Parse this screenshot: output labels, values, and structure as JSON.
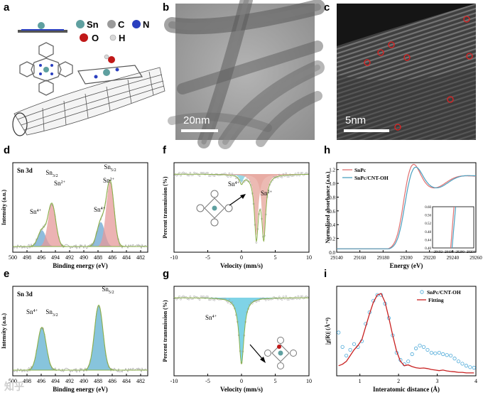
{
  "panels": {
    "a": {
      "label": "a",
      "legend": [
        {
          "symbol": "Sn",
          "color": "#5fa0a0"
        },
        {
          "symbol": "C",
          "color": "#9a9a9a"
        },
        {
          "symbol": "N",
          "color": "#2a3fbf"
        },
        {
          "symbol": "O",
          "color": "#c01818"
        },
        {
          "symbol": "H",
          "color": "#d8d8d8"
        }
      ]
    },
    "b": {
      "label": "b",
      "scale_bar": "20nm"
    },
    "c": {
      "label": "c",
      "scale_bar": "5nm"
    },
    "d": {
      "label": "d"
    },
    "e": {
      "label": "e"
    },
    "f": {
      "label": "f"
    },
    "g": {
      "label": "g"
    },
    "h": {
      "label": "h"
    },
    "i": {
      "label": "i"
    }
  },
  "watermark": "知乎",
  "chart_data": [
    {
      "panel": "d",
      "type": "line",
      "title": "Sn 3d",
      "xlabel": "Binding energy (eV)",
      "ylabel": "Intensity (a.u.)",
      "xlim": [
        500,
        481
      ],
      "x_reversed": true,
      "xticks": [
        500,
        498,
        496,
        494,
        492,
        490,
        488,
        486,
        484,
        482
      ],
      "annotations": [
        {
          "text": "Sn3/2",
          "main": "Sn",
          "sub": "3/2",
          "x": 494.8
        },
        {
          "text": "Sn2+",
          "main": "Sn",
          "sup": "2+",
          "x": 493.5
        },
        {
          "text": "Sn4+",
          "main": "Sn",
          "sup": "4+",
          "x": 496.8
        },
        {
          "text": "Sn5/2",
          "main": "Sn",
          "sub": "5/2",
          "x": 486.8
        },
        {
          "text": "Sn2+",
          "main": "Sn",
          "sup": "2+",
          "x": 487.3
        },
        {
          "text": "Sn4+",
          "main": "Sn",
          "sup": "4+",
          "x": 488.8
        }
      ],
      "series": [
        {
          "name": "Sn4+ 3d3/2",
          "center": 495.9,
          "height": 0.22,
          "color": "#6aa6d0"
        },
        {
          "name": "Sn2+ 3d3/2",
          "center": 494.5,
          "height": 0.58,
          "color": "#e59a9a"
        },
        {
          "name": "Sn4+ 3d5/2",
          "center": 487.6,
          "height": 0.33,
          "color": "#6aa6d0"
        },
        {
          "name": "Sn2+ 3d5/2",
          "center": 486.3,
          "height": 0.88,
          "color": "#e59a9a"
        }
      ]
    },
    {
      "panel": "e",
      "type": "line",
      "title": "Sn 3d",
      "xlabel": "Binding energy (eV)",
      "ylabel": "Intensity (a.u.)",
      "xlim": [
        500,
        481
      ],
      "x_reversed": true,
      "xticks": [
        500,
        498,
        496,
        494,
        492,
        490,
        488,
        486,
        484,
        482
      ],
      "annotations": [
        {
          "text": "Sn4+",
          "main": "Sn",
          "sup": "4+",
          "x": 497.2
        },
        {
          "text": "Sn3/2",
          "main": "Sn",
          "sub": "3/2",
          "x": 494.8
        },
        {
          "text": "Sn5/2",
          "main": "Sn",
          "sub": "5/2",
          "x": 487.7
        }
      ],
      "series": [
        {
          "name": "Sn4+ 3d3/2",
          "center": 495.9,
          "height": 0.58,
          "color": "#5fb0d0"
        },
        {
          "name": "Sn4+ 3d5/2",
          "center": 487.9,
          "height": 0.88,
          "color": "#5fb0d0"
        }
      ]
    },
    {
      "panel": "f",
      "type": "line",
      "xlabel": "Velocity (mm/s)",
      "ylabel": "Percent transmission (%)",
      "xlim": [
        -10,
        10
      ],
      "xticks": [
        -10,
        -5,
        0,
        5,
        10
      ],
      "annotations": [
        {
          "text": "Sn4+",
          "main": "Sn",
          "sup": "4+",
          "x": -1.5
        },
        {
          "text": "Sn2+",
          "main": "Sn",
          "sup": "2+",
          "x": 4.6
        }
      ],
      "series": [
        {
          "name": "Sn4+",
          "center": 0.0,
          "depth": 0.12,
          "color": "#7fd0e0"
        },
        {
          "name": "Sn2+ doublet A",
          "center": 2.2,
          "depth": 0.88,
          "color": "#e7a9a0"
        },
        {
          "name": "Sn2+ doublet B",
          "center": 3.3,
          "depth": 0.88,
          "color": "#e7a9a0"
        }
      ]
    },
    {
      "panel": "g",
      "type": "line",
      "xlabel": "Velocity (mm/s)",
      "ylabel": "Percent transmission (%)",
      "xlim": [
        -10,
        10
      ],
      "xticks": [
        -10,
        -5,
        0,
        5,
        10
      ],
      "annotations": [
        {
          "text": "Sn4+",
          "main": "Sn",
          "sup": "4+",
          "x": -2.4
        }
      ],
      "series": [
        {
          "name": "Sn4+",
          "center": 0.0,
          "depth": 0.95,
          "color": "#5fc8e0"
        }
      ]
    },
    {
      "panel": "h",
      "type": "line",
      "xlabel": "Energy (eV)",
      "ylabel": "Normalized absorbance (a.u.)",
      "xlim": [
        29140,
        29260
      ],
      "ylim": [
        0.0,
        1.3
      ],
      "xticks": [
        29140,
        29160,
        29180,
        29200,
        29220,
        29240,
        29260
      ],
      "yticks": [
        0.0,
        0.2,
        0.4,
        0.6,
        0.8,
        1.0,
        1.2
      ],
      "legend": [
        "SnPc",
        "SnPc/CNT-OH"
      ],
      "series": [
        {
          "name": "SnPc",
          "color": "#e07070",
          "edge": 29197,
          "peak_x": 29205,
          "peak_y": 1.23
        },
        {
          "name": "SnPc/CNT-OH",
          "color": "#4aa0c0",
          "edge": 29198,
          "peak_x": 29207,
          "peak_y": 1.19
        }
      ],
      "inset": {
        "xlim": [
          29190,
          29205
        ],
        "xticks": [
          29192,
          29196,
          29200,
          29204
        ],
        "ylim": [
          0.4,
          0.6
        ],
        "yticks": [
          0.4,
          0.44,
          0.48,
          0.52,
          0.56,
          0.6
        ],
        "series": [
          {
            "name": "SnPc",
            "x": [
              29196.6,
              29197.8
            ],
            "y": [
              0.4,
              0.6
            ]
          },
          {
            "name": "SnPc/CNT-OH",
            "x": [
              29197.1,
              29198.4
            ],
            "y": [
              0.4,
              0.6
            ]
          }
        ]
      }
    },
    {
      "panel": "i",
      "type": "line",
      "xlabel": "Interatomic distance (Å)",
      "ylabel": "|χ(R)| (Å⁻⁴)",
      "xlim": [
        0.4,
        4.0
      ],
      "ylim": [
        0.0,
        3.1
      ],
      "xticks": [
        1,
        2,
        3,
        4
      ],
      "legend": [
        "SnPc/CNT-OH",
        "Fitting"
      ],
      "series": [
        {
          "name": "SnPc/CNT-OH",
          "style": "circles",
          "color": "#4aa8d8",
          "x": [
            0.45,
            0.55,
            0.65,
            0.75,
            0.85,
            0.95,
            1.05,
            1.15,
            1.25,
            1.35,
            1.45,
            1.55,
            1.65,
            1.75,
            1.85,
            1.95,
            2.05,
            2.15,
            2.25,
            2.35,
            2.45,
            2.55,
            2.65,
            2.75,
            2.85,
            2.95,
            3.05,
            3.15,
            3.25,
            3.35,
            3.45,
            3.55,
            3.65,
            3.75,
            3.85,
            3.95
          ],
          "y": [
            1.5,
            1.0,
            0.7,
            0.9,
            1.1,
            1.0,
            1.2,
            1.8,
            2.2,
            2.6,
            2.8,
            2.8,
            2.5,
            2.0,
            1.4,
            0.8,
            0.55,
            0.4,
            0.5,
            0.75,
            0.95,
            1.05,
            1.0,
            0.9,
            0.8,
            0.78,
            0.8,
            0.75,
            0.72,
            0.7,
            0.6,
            0.5,
            0.42,
            0.35,
            0.3,
            0.28
          ]
        },
        {
          "name": "Fitting",
          "style": "line",
          "color": "#c82020",
          "x": [
            0.45,
            0.55,
            0.65,
            0.75,
            0.85,
            0.95,
            1.05,
            1.15,
            1.25,
            1.35,
            1.45,
            1.55,
            1.65,
            1.75,
            1.85,
            1.95,
            2.05,
            2.15,
            2.25,
            2.35,
            2.45,
            2.55,
            2.65,
            2.75,
            2.85,
            2.95,
            3.05,
            3.15,
            3.25,
            3.35,
            3.45,
            3.55,
            3.65,
            3.75,
            3.85,
            3.95
          ],
          "y": [
            0.35,
            0.4,
            0.5,
            0.7,
            0.9,
            1.05,
            1.25,
            1.7,
            2.15,
            2.55,
            2.8,
            2.85,
            2.55,
            2.0,
            1.4,
            0.85,
            0.5,
            0.35,
            0.38,
            0.32,
            0.28,
            0.26,
            0.27,
            0.25,
            0.22,
            0.2,
            0.18,
            0.2,
            0.17,
            0.15,
            0.14,
            0.12,
            0.12,
            0.1,
            0.1,
            0.1
          ]
        }
      ]
    }
  ]
}
